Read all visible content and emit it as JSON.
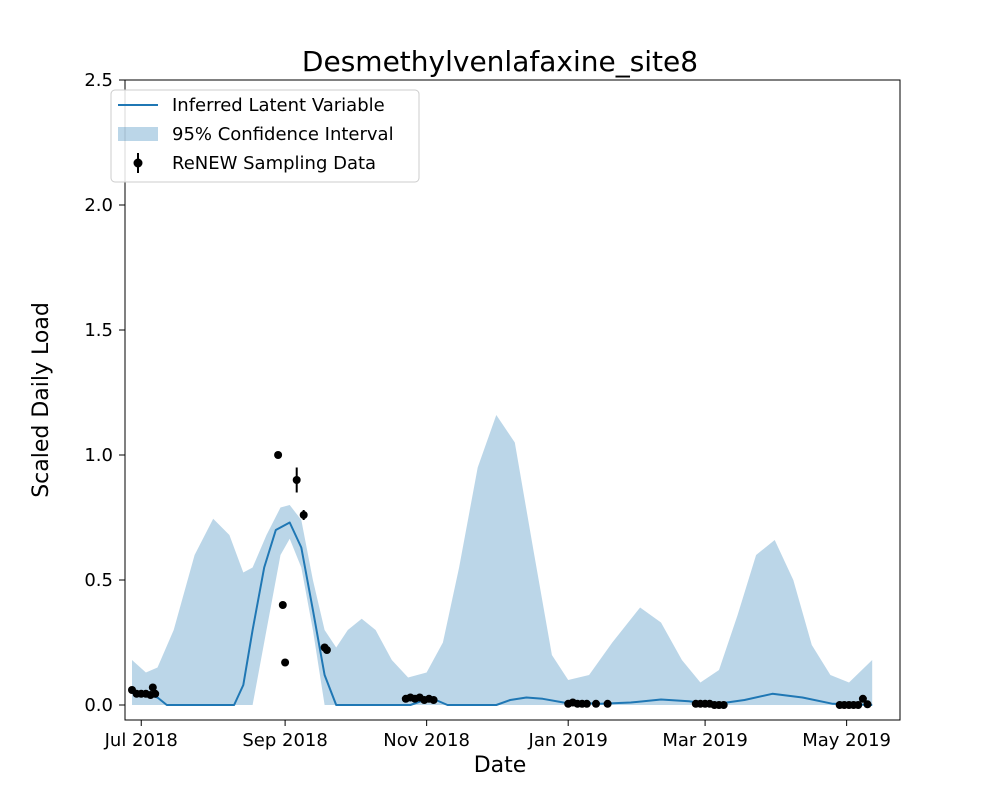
{
  "chart_data": {
    "type": "line",
    "title": "Desmethylvenlafaxine_site8",
    "xlabel": "Date",
    "ylabel": "Scaled Daily Load",
    "xlim": [
      "2018-06-24",
      "2019-05-24"
    ],
    "ylim": [
      -0.06,
      2.5
    ],
    "x_ticks": [
      {
        "label": "Jul 2018",
        "date": "2018-07-01"
      },
      {
        "label": "Sep 2018",
        "date": "2018-09-01"
      },
      {
        "label": "Nov 2018",
        "date": "2018-11-01"
      },
      {
        "label": "Jan 2019",
        "date": "2019-01-01"
      },
      {
        "label": "Mar 2019",
        "date": "2019-03-01"
      },
      {
        "label": "May 2019",
        "date": "2019-05-01"
      }
    ],
    "y_ticks": [
      {
        "label": "0.0",
        "value": 0.0
      },
      {
        "label": "0.5",
        "value": 0.5
      },
      {
        "label": "1.0",
        "value": 1.0
      },
      {
        "label": "1.5",
        "value": 1.5
      },
      {
        "label": "2.0",
        "value": 2.0
      },
      {
        "label": "2.5",
        "value": 2.5
      }
    ],
    "grid": false,
    "legend_position": "top-left",
    "series": [
      {
        "name": "Inferred Latent Variable",
        "kind": "line",
        "color": "#1f77b4",
        "points": [
          [
            "2018-06-27",
            0.05
          ],
          [
            "2018-07-03",
            0.045
          ],
          [
            "2018-07-08",
            0.03
          ],
          [
            "2018-07-12",
            0.0
          ],
          [
            "2018-08-10",
            0.0
          ],
          [
            "2018-08-14",
            0.08
          ],
          [
            "2018-08-18",
            0.3
          ],
          [
            "2018-08-23",
            0.55
          ],
          [
            "2018-08-28",
            0.7
          ],
          [
            "2018-09-03",
            0.73
          ],
          [
            "2018-09-08",
            0.63
          ],
          [
            "2018-09-13",
            0.38
          ],
          [
            "2018-09-18",
            0.12
          ],
          [
            "2018-09-23",
            0.0
          ],
          [
            "2018-10-25",
            0.0
          ],
          [
            "2018-10-31",
            0.02
          ],
          [
            "2018-11-05",
            0.02
          ],
          [
            "2018-11-10",
            0.0
          ],
          [
            "2018-12-01",
            0.0
          ],
          [
            "2018-12-07",
            0.02
          ],
          [
            "2018-12-14",
            0.03
          ],
          [
            "2018-12-21",
            0.025
          ],
          [
            "2018-12-30",
            0.01
          ],
          [
            "2019-01-15",
            0.005
          ],
          [
            "2019-01-28",
            0.01
          ],
          [
            "2019-02-10",
            0.022
          ],
          [
            "2019-02-22",
            0.015
          ],
          [
            "2019-03-05",
            0.003
          ],
          [
            "2019-03-18",
            0.02
          ],
          [
            "2019-03-30",
            0.045
          ],
          [
            "2019-04-12",
            0.03
          ],
          [
            "2019-04-25",
            0.005
          ],
          [
            "2019-05-12",
            0.0
          ]
        ]
      },
      {
        "name": "95% Confidence Interval",
        "kind": "band",
        "color": "#1f77b4",
        "opacity": 0.3,
        "points": [
          [
            "2018-06-27",
            0.0,
            0.18
          ],
          [
            "2018-07-03",
            0.0,
            0.13
          ],
          [
            "2018-07-08",
            0.0,
            0.15
          ],
          [
            "2018-07-15",
            0.0,
            0.3
          ],
          [
            "2018-07-24",
            0.0,
            0.6
          ],
          [
            "2018-08-01",
            0.0,
            0.745
          ],
          [
            "2018-08-08",
            0.0,
            0.68
          ],
          [
            "2018-08-14",
            0.0,
            0.53
          ],
          [
            "2018-08-18",
            0.0,
            0.55
          ],
          [
            "2018-08-24",
            0.3,
            0.68
          ],
          [
            "2018-08-30",
            0.6,
            0.79
          ],
          [
            "2018-09-03",
            0.665,
            0.8
          ],
          [
            "2018-09-08",
            0.55,
            0.74
          ],
          [
            "2018-09-13",
            0.3,
            0.5
          ],
          [
            "2018-09-18",
            0.0,
            0.3
          ],
          [
            "2018-09-23",
            0.0,
            0.23
          ],
          [
            "2018-09-28",
            0.0,
            0.3
          ],
          [
            "2018-10-04",
            0.0,
            0.345
          ],
          [
            "2018-10-10",
            0.0,
            0.3
          ],
          [
            "2018-10-17",
            0.0,
            0.18
          ],
          [
            "2018-10-24",
            0.0,
            0.11
          ],
          [
            "2018-11-01",
            0.0,
            0.13
          ],
          [
            "2018-11-08",
            0.0,
            0.25
          ],
          [
            "2018-11-15",
            0.0,
            0.55
          ],
          [
            "2018-11-23",
            0.0,
            0.95
          ],
          [
            "2018-12-01",
            0.0,
            1.16
          ],
          [
            "2018-12-09",
            0.0,
            1.05
          ],
          [
            "2018-12-17",
            0.0,
            0.62
          ],
          [
            "2018-12-25",
            0.0,
            0.2
          ],
          [
            "2019-01-01",
            0.0,
            0.1
          ],
          [
            "2019-01-10",
            0.0,
            0.12
          ],
          [
            "2019-01-20",
            0.0,
            0.25
          ],
          [
            "2019-02-01",
            0.0,
            0.39
          ],
          [
            "2019-02-10",
            0.0,
            0.33
          ],
          [
            "2019-02-19",
            0.0,
            0.18
          ],
          [
            "2019-02-27",
            0.0,
            0.09
          ],
          [
            "2019-03-07",
            0.0,
            0.14
          ],
          [
            "2019-03-15",
            0.0,
            0.36
          ],
          [
            "2019-03-23",
            0.0,
            0.6
          ],
          [
            "2019-03-31",
            0.0,
            0.66
          ],
          [
            "2019-04-08",
            0.0,
            0.5
          ],
          [
            "2019-04-16",
            0.0,
            0.24
          ],
          [
            "2019-04-24",
            0.0,
            0.12
          ],
          [
            "2019-05-02",
            0.0,
            0.09
          ],
          [
            "2019-05-12",
            0.0,
            0.18
          ]
        ]
      },
      {
        "name": "ReNEW Sampling Data",
        "kind": "points",
        "color": "#000000",
        "points": [
          [
            "2018-06-27",
            0.06,
            0.0
          ],
          [
            "2018-06-29",
            0.045,
            0.0
          ],
          [
            "2018-07-01",
            0.045,
            0.0
          ],
          [
            "2018-07-03",
            0.045,
            0.0
          ],
          [
            "2018-07-05",
            0.04,
            0.0
          ],
          [
            "2018-07-06",
            0.07,
            0.0
          ],
          [
            "2018-07-07",
            0.045,
            0.0
          ],
          [
            "2018-08-29",
            1.0,
            0.0
          ],
          [
            "2018-08-31",
            0.4,
            0.0
          ],
          [
            "2018-09-01",
            0.17,
            0.0
          ],
          [
            "2018-09-06",
            0.9,
            0.05
          ],
          [
            "2018-09-09",
            0.76,
            0.02
          ],
          [
            "2018-09-18",
            0.23,
            0.0
          ],
          [
            "2018-09-19",
            0.22,
            0.0
          ],
          [
            "2018-10-23",
            0.025,
            0.0
          ],
          [
            "2018-10-25",
            0.03,
            0.0
          ],
          [
            "2018-10-27",
            0.025,
            0.0
          ],
          [
            "2018-10-29",
            0.03,
            0.0
          ],
          [
            "2018-10-31",
            0.02,
            0.0
          ],
          [
            "2018-11-02",
            0.025,
            0.0
          ],
          [
            "2018-11-04",
            0.02,
            0.0
          ],
          [
            "2019-01-01",
            0.005,
            0.0
          ],
          [
            "2019-01-03",
            0.01,
            0.0
          ],
          [
            "2019-01-05",
            0.005,
            0.0
          ],
          [
            "2019-01-07",
            0.005,
            0.0
          ],
          [
            "2019-01-09",
            0.005,
            0.0
          ],
          [
            "2019-01-13",
            0.005,
            0.0
          ],
          [
            "2019-01-18",
            0.005,
            0.0
          ],
          [
            "2019-02-25",
            0.005,
            0.0
          ],
          [
            "2019-02-27",
            0.005,
            0.0
          ],
          [
            "2019-03-01",
            0.005,
            0.0
          ],
          [
            "2019-03-03",
            0.005,
            0.0
          ],
          [
            "2019-03-05",
            0.0,
            0.0
          ],
          [
            "2019-03-07",
            0.0,
            0.0
          ],
          [
            "2019-03-09",
            0.0,
            0.0
          ],
          [
            "2019-04-28",
            0.0,
            0.0
          ],
          [
            "2019-04-30",
            0.0,
            0.0
          ],
          [
            "2019-05-02",
            0.0,
            0.0
          ],
          [
            "2019-05-04",
            0.0,
            0.0
          ],
          [
            "2019-05-06",
            0.0,
            0.0
          ],
          [
            "2019-05-08",
            0.025,
            0.0
          ],
          [
            "2019-05-10",
            0.003,
            0.0
          ]
        ]
      }
    ]
  }
}
